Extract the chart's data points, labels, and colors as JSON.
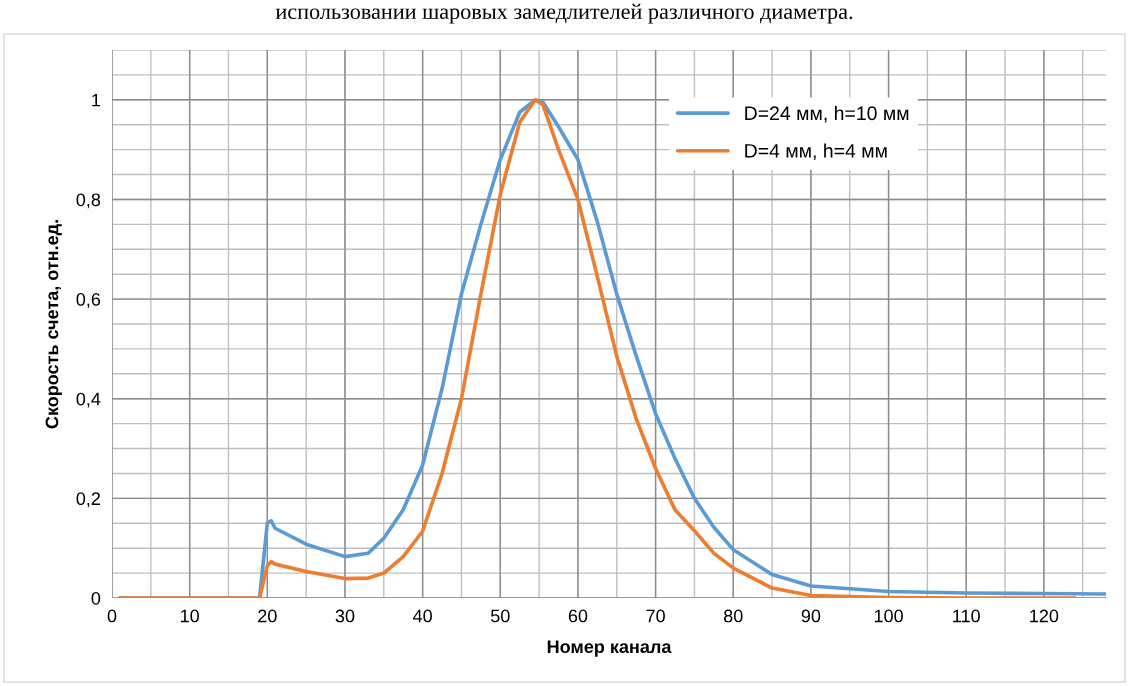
{
  "chart_data": {
    "type": "line",
    "xlabel": "Номер канала",
    "ylabel": "Скорость счета, отн.ед.",
    "annotations": [
      "использовании шаровых замедлителей различного диаметра."
    ],
    "xlim": [
      0,
      128
    ],
    "xticks": [
      0,
      10,
      20,
      30,
      40,
      50,
      60,
      70,
      80,
      90,
      100,
      110,
      120
    ],
    "ylim": [
      0,
      1.1
    ],
    "yticks": [
      0,
      {
        "value": 0.2,
        "label": "0,2"
      },
      {
        "value": 0.4,
        "label": "0,4"
      },
      {
        "value": 0.6,
        "label": "0,6"
      },
      {
        "value": 0.8,
        "label": "0,8"
      },
      1
    ],
    "grid": true,
    "legend": "top right",
    "marker": "none",
    "line_style": "solid",
    "series": [
      {
        "name": "D=24 мм, h=10 мм",
        "color": "#5b9bd5",
        "x": [
          1,
          19,
          20,
          20.5,
          21,
          25,
          30,
          33,
          35,
          37.5,
          40,
          42.5,
          45,
          47.5,
          50,
          52.5,
          54.5,
          55.5,
          57.5,
          60,
          62.5,
          65,
          67.5,
          70,
          72.5,
          75,
          77.5,
          80,
          85,
          90,
          100,
          110,
          120,
          128
        ],
        "values": [
          0,
          0,
          0.15,
          0.155,
          0.14,
          0.108,
          0.083,
          0.09,
          0.12,
          0.177,
          0.267,
          0.42,
          0.61,
          0.75,
          0.88,
          0.975,
          1.0,
          0.995,
          0.946,
          0.88,
          0.755,
          0.61,
          0.486,
          0.37,
          0.28,
          0.2,
          0.142,
          0.097,
          0.047,
          0.024,
          0.013,
          0.01,
          0.009,
          0.008
        ]
      },
      {
        "name": "D=4 мм, h=4 мм",
        "color": "#ed7d31",
        "x": [
          1,
          19,
          20,
          20.5,
          21,
          25,
          30,
          33,
          35,
          37.5,
          40,
          42.5,
          45,
          47.5,
          50,
          52.5,
          54.5,
          55.5,
          57.5,
          60,
          62.5,
          65,
          67.5,
          70,
          72.5,
          75,
          77.5,
          80,
          85,
          90,
          100,
          110,
          124
        ],
        "values": [
          0,
          0,
          0.065,
          0.073,
          0.068,
          0.053,
          0.039,
          0.04,
          0.05,
          0.083,
          0.134,
          0.25,
          0.4,
          0.61,
          0.81,
          0.955,
          1.0,
          0.99,
          0.9,
          0.8,
          0.645,
          0.485,
          0.36,
          0.26,
          0.177,
          0.135,
          0.09,
          0.06,
          0.02,
          0.005,
          0.001,
          0,
          0
        ]
      }
    ]
  }
}
